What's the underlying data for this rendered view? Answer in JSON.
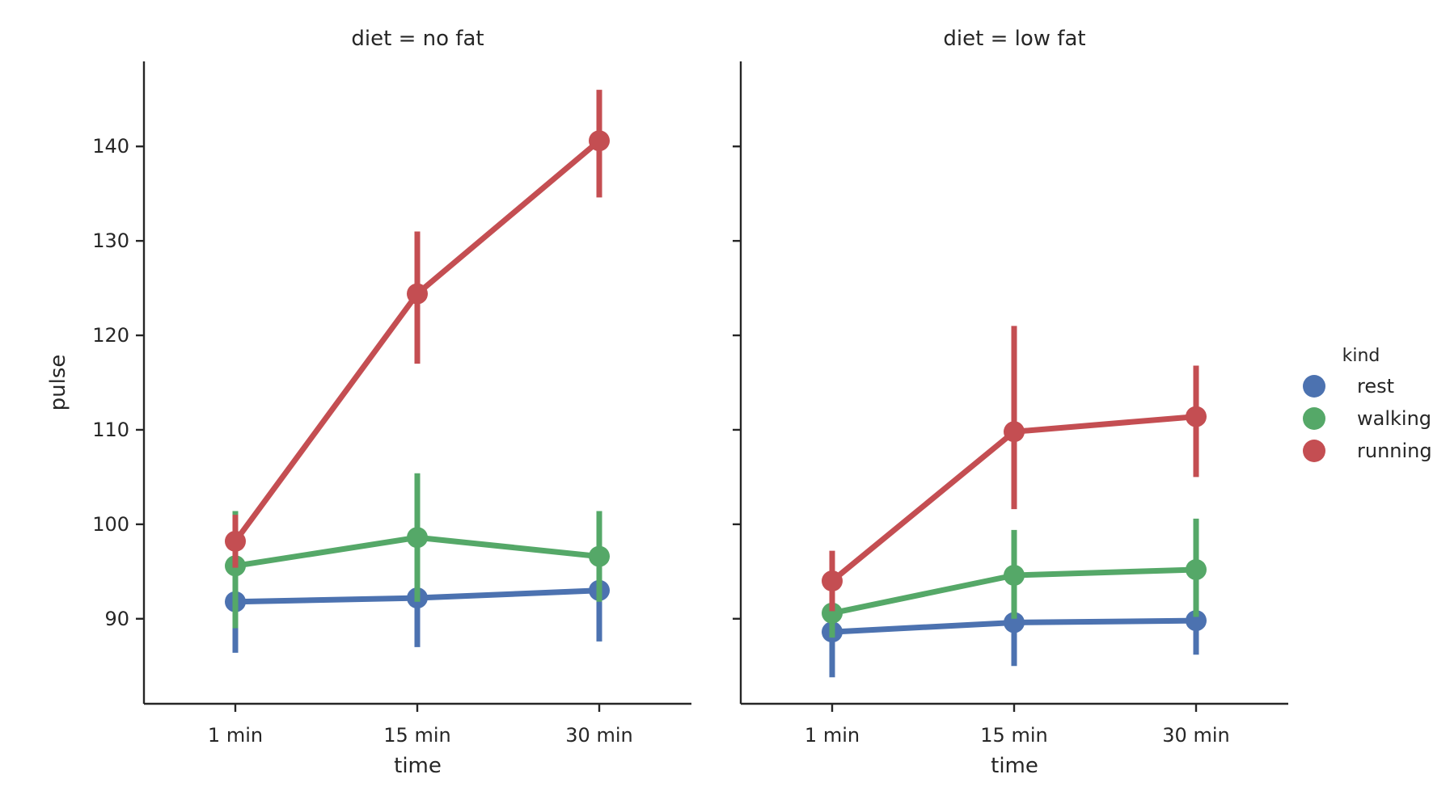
{
  "chart_data": {
    "type": "line",
    "categories": [
      "1 min",
      "15 min",
      "30 min"
    ],
    "xlabel": "time",
    "ylabel": "pulse",
    "ylim": [
      81,
      149
    ],
    "yticks": [
      90,
      100,
      110,
      120,
      130,
      140
    ],
    "grid": false,
    "legend": {
      "title": "kind",
      "placement": "right",
      "entries": [
        "rest",
        "walking",
        "running"
      ]
    },
    "colors": {
      "rest": "#4c72b0",
      "walking": "#55a868",
      "running": "#c44e52"
    },
    "panels": [
      {
        "title": "diet = no fat",
        "series": [
          {
            "name": "rest",
            "values": [
              91.8,
              92.2,
              93.0
            ],
            "ci_low": [
              86.4,
              87.0,
              87.6
            ],
            "ci_high": [
              96.8,
              97.6,
              98.6
            ]
          },
          {
            "name": "walking",
            "values": [
              95.6,
              98.6,
              96.6
            ],
            "ci_low": [
              89.0,
              91.8,
              91.8
            ],
            "ci_high": [
              101.4,
              105.4,
              101.4
            ]
          },
          {
            "name": "running",
            "values": [
              98.2,
              124.4,
              140.6
            ],
            "ci_low": [
              95.4,
              117.0,
              134.6
            ],
            "ci_high": [
              101.0,
              131.0,
              146.0
            ]
          }
        ]
      },
      {
        "title": "diet = low fat",
        "series": [
          {
            "name": "rest",
            "values": [
              88.6,
              89.6,
              89.8
            ],
            "ci_low": [
              83.8,
              85.0,
              86.2
            ],
            "ci_high": [
              92.8,
              94.4,
              93.4
            ]
          },
          {
            "name": "walking",
            "values": [
              90.6,
              94.6,
              95.2
            ],
            "ci_low": [
              88.0,
              90.0,
              90.2
            ],
            "ci_high": [
              93.6,
              99.4,
              100.6
            ]
          },
          {
            "name": "running",
            "values": [
              94.0,
              109.8,
              111.4
            ],
            "ci_low": [
              90.8,
              101.6,
              105.0
            ],
            "ci_high": [
              97.2,
              121.0,
              116.8
            ]
          }
        ]
      }
    ]
  }
}
